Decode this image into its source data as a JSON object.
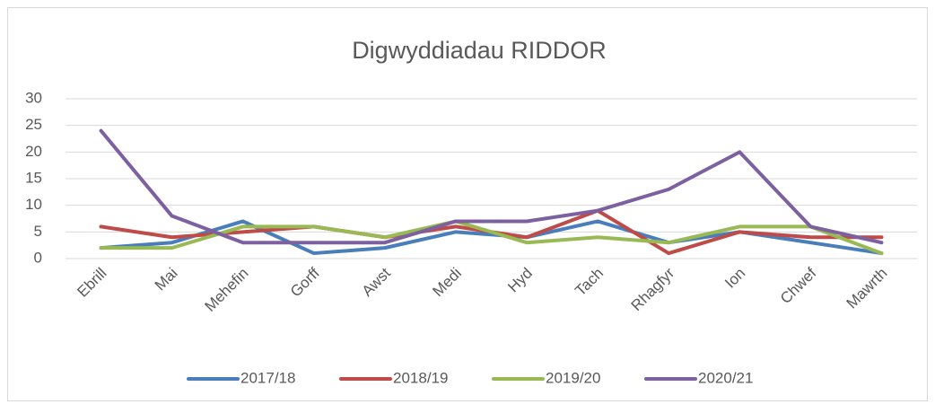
{
  "chart_data": {
    "type": "line",
    "title": "Digwyddiadau RIDDOR",
    "categories": [
      "Ebrill",
      "Mai",
      "Mehefin",
      "Gorff",
      "Awst",
      "Medi",
      "Hyd",
      "Tach",
      "Rhagfyr",
      "Ion",
      "Chwef",
      "Mawrth"
    ],
    "series": [
      {
        "name": "2017/18",
        "color": "#4a7ebb",
        "values": [
          2,
          3,
          7,
          1,
          2,
          5,
          4,
          7,
          3,
          5,
          3,
          1
        ]
      },
      {
        "name": "2018/19",
        "color": "#be4b48",
        "values": [
          6,
          4,
          5,
          6,
          4,
          6,
          4,
          9,
          1,
          5,
          4,
          4
        ]
      },
      {
        "name": "2019/20",
        "color": "#98b954",
        "values": [
          2,
          2,
          6,
          6,
          4,
          7,
          3,
          4,
          3,
          6,
          6,
          1
        ]
      },
      {
        "name": "2020/21",
        "color": "#7d60a0",
        "values": [
          24,
          8,
          3,
          3,
          3,
          7,
          7,
          9,
          13,
          20,
          6,
          3
        ]
      }
    ],
    "ylim": [
      0,
      30
    ],
    "yticks": [
      0,
      5,
      10,
      15,
      20,
      25,
      30
    ],
    "grid": true,
    "legend": "bottom"
  }
}
